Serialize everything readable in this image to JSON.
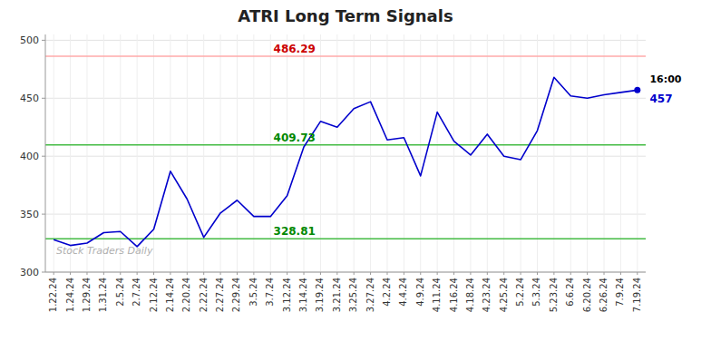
{
  "chart_data": {
    "type": "line",
    "title": "ATRI Long Term Signals",
    "categories": [
      "1.22.24",
      "1.24.24",
      "1.29.24",
      "1.31.24",
      "2.5.24",
      "2.7.24",
      "2.12.24",
      "2.14.24",
      "2.20.24",
      "2.22.24",
      "2.27.24",
      "2.29.24",
      "3.5.24",
      "3.7.24",
      "3.12.24",
      "3.14.24",
      "3.19.24",
      "3.21.24",
      "3.25.24",
      "3.27.24",
      "4.2.24",
      "4.4.24",
      "4.9.24",
      "4.11.24",
      "4.16.24",
      "4.18.24",
      "4.23.24",
      "4.25.24",
      "5.2.24",
      "5.3.24",
      "5.23.24",
      "6.6.24",
      "6.20.24",
      "6.26.24",
      "7.9.24",
      "7.19.24"
    ],
    "values": [
      328,
      323,
      325,
      334,
      335,
      322,
      337,
      387,
      363,
      330,
      351,
      362,
      348,
      348,
      366,
      408,
      430,
      425,
      441,
      447,
      414,
      416,
      383,
      438,
      413,
      401,
      419,
      400,
      397,
      422,
      468,
      452,
      450,
      453,
      455,
      457
    ],
    "color": "#0000cc",
    "ylim": [
      300,
      505
    ],
    "yticks": [
      300,
      350,
      400,
      450,
      500
    ],
    "grid": true,
    "reference_lines": [
      {
        "value": 486.29,
        "label": "486.29",
        "color": "#ffaaaa",
        "label_color": "#cc0000"
      },
      {
        "value": 409.73,
        "label": "409.73",
        "color": "#44bb44",
        "label_color": "#008800"
      },
      {
        "value": 328.81,
        "label": "328.81",
        "color": "#44bb44",
        "label_color": "#008800"
      }
    ],
    "annotations": [
      {
        "text": "16:00"
      },
      {
        "text": "457",
        "value": 457
      }
    ],
    "watermark": "Stock Traders Daily"
  }
}
